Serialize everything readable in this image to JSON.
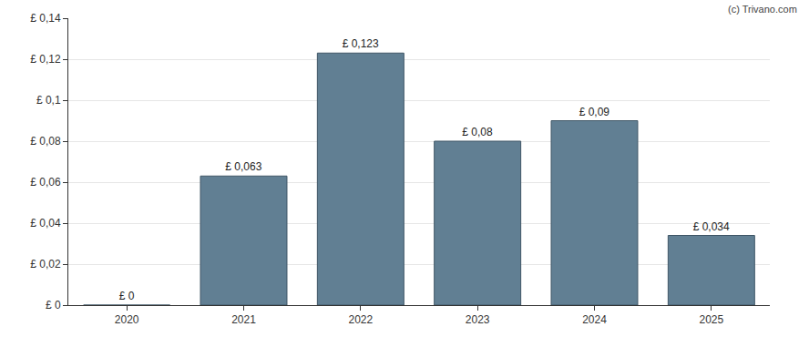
{
  "chart_data": {
    "type": "bar",
    "categories": [
      "2020",
      "2021",
      "2022",
      "2023",
      "2024",
      "2025"
    ],
    "values": [
      0,
      0.063,
      0.123,
      0.08,
      0.09,
      0.034
    ],
    "value_labels": [
      "£ 0",
      "£ 0,063",
      "£ 0,123",
      "£ 0,08",
      "£ 0,09",
      "£ 0,034"
    ],
    "data_labels": true,
    "color": "#617f93",
    "ylim": [
      0,
      0.14
    ],
    "yticks": [
      {
        "value": 0,
        "label": "£ 0"
      },
      {
        "value": 0.02,
        "label": "£ 0,02"
      },
      {
        "value": 0.04,
        "label": "£ 0,04"
      },
      {
        "value": 0.06,
        "label": "£ 0,06"
      },
      {
        "value": 0.08,
        "label": "£ 0,08"
      },
      {
        "value": 0.1,
        "label": "£ 0,1"
      },
      {
        "value": 0.12,
        "label": "£ 0,12"
      },
      {
        "value": 0.14,
        "label": "£ 0,14"
      }
    ],
    "grid": true,
    "annotations": [
      "(c) Trivano.com"
    ]
  }
}
